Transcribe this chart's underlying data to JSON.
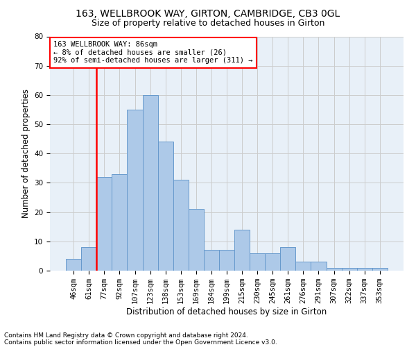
{
  "title1": "163, WELLBROOK WAY, GIRTON, CAMBRIDGE, CB3 0GL",
  "title2": "Size of property relative to detached houses in Girton",
  "xlabel": "Distribution of detached houses by size in Girton",
  "ylabel": "Number of detached properties",
  "categories": [
    "46sqm",
    "61sqm",
    "77sqm",
    "92sqm",
    "107sqm",
    "123sqm",
    "138sqm",
    "153sqm",
    "169sqm",
    "184sqm",
    "199sqm",
    "215sqm",
    "230sqm",
    "245sqm",
    "261sqm",
    "276sqm",
    "291sqm",
    "307sqm",
    "322sqm",
    "337sqm",
    "353sqm"
  ],
  "values": [
    4,
    8,
    32,
    33,
    55,
    60,
    44,
    31,
    21,
    7,
    7,
    14,
    6,
    6,
    8,
    3,
    3,
    1,
    1,
    1,
    1
  ],
  "bar_color": "#adc9e8",
  "bar_edge_color": "#6699cc",
  "annotation_text": "163 WELLBROOK WAY: 86sqm\n← 8% of detached houses are smaller (26)\n92% of semi-detached houses are larger (311) →",
  "annotation_box_color": "white",
  "annotation_box_edge_color": "red",
  "vline_color": "red",
  "vline_x": 1.5,
  "ylim": [
    0,
    80
  ],
  "yticks": [
    0,
    10,
    20,
    30,
    40,
    50,
    60,
    70,
    80
  ],
  "grid_color": "#cccccc",
  "background_color": "#e8f0f8",
  "footer1": "Contains HM Land Registry data © Crown copyright and database right 2024.",
  "footer2": "Contains public sector information licensed under the Open Government Licence v3.0.",
  "title1_fontsize": 10,
  "title2_fontsize": 9,
  "xlabel_fontsize": 8.5,
  "ylabel_fontsize": 8.5,
  "tick_fontsize": 7.5,
  "footer_fontsize": 6.5,
  "annotation_fontsize": 7.5
}
